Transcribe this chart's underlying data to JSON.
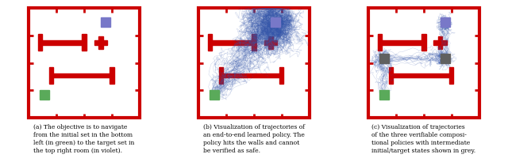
{
  "fig_width": 6.4,
  "fig_height": 2.01,
  "dpi": 100,
  "room_color": "#cc0000",
  "room_lw": 2.0,
  "obstacle_color": "#cc0000",
  "initial_color": "#5aaa5a",
  "target_color": "#7878c8",
  "grey_color": "#606060",
  "traj_color": "#3355aa",
  "traj_alpha": 0.25,
  "traj_lw": 0.35,
  "caption_a": "(a) The objective is to navigate\nfrom the initial set in the bottom\nleft (in green) to the target set in\nthe top right room (in violet).",
  "caption_b": "(b) Visualization of trajectories of\nan end-to-end learned policy. The\npolicy hits the walls and cannot\nbe verified as safe.",
  "caption_c": "(c) Visualization of trajectories\nof the three verifiable composi-\ntional policies with intermediate\ninitial/target states shown in grey.",
  "caption_fontsize": 5.5
}
